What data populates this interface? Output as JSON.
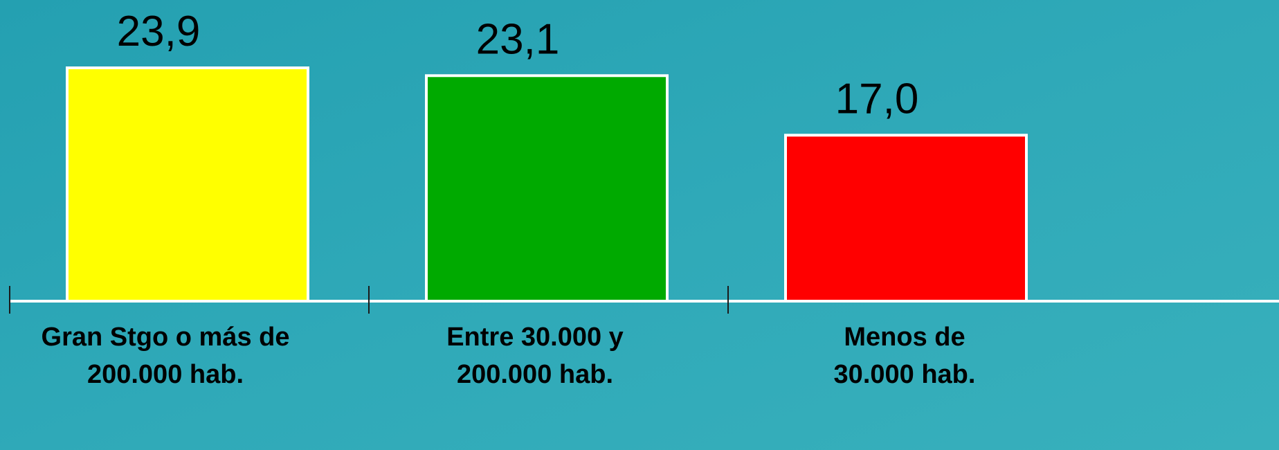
{
  "chart_data": {
    "type": "bar",
    "categories": [
      "Gran Stgo o más de\n200.000 hab.",
      "Entre 30.000 y\n200.000 hab.",
      "Menos de\n30.000 hab."
    ],
    "values": [
      23.9,
      23.1,
      17.0
    ],
    "value_labels": [
      "23,9",
      "23,1",
      "17,0"
    ],
    "colors": [
      "#ffff00",
      "#00aa00",
      "#ff0000"
    ]
  }
}
